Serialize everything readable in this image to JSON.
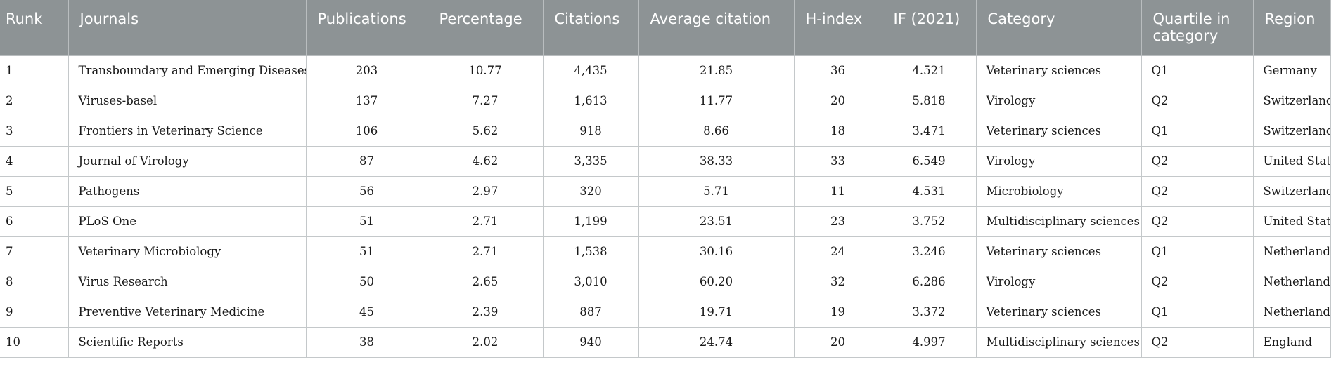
{
  "table": {
    "headers": {
      "rank": "Runk",
      "journal": "Journals",
      "publications": "Publications",
      "percentage": "Percentage",
      "citations": "Citations",
      "avg_citation": "Average citation",
      "h_index": "H-index",
      "impact_factor": "IF (2021)",
      "category": "Category",
      "quartile": "Quartile in category",
      "region": "Region"
    },
    "rows": [
      {
        "rank": "1",
        "journal": "Transboundary and Emerging Diseases",
        "publications": "203",
        "percentage": "10.77",
        "citations": "4,435",
        "avg_citation": "21.85",
        "h_index": "36",
        "impact_factor": "4.521",
        "category": "Veterinary sciences",
        "quartile": "Q1",
        "region": "Germany"
      },
      {
        "rank": "2",
        "journal": "Viruses-basel",
        "publications": "137",
        "percentage": "7.27",
        "citations": "1,613",
        "avg_citation": "11.77",
        "h_index": "20",
        "impact_factor": "5.818",
        "category": "Virology",
        "quartile": "Q2",
        "region": "Switzerland"
      },
      {
        "rank": "3",
        "journal": "Frontiers in Veterinary Science",
        "publications": "106",
        "percentage": "5.62",
        "citations": "918",
        "avg_citation": "8.66",
        "h_index": "18",
        "impact_factor": "3.471",
        "category": "Veterinary sciences",
        "quartile": "Q1",
        "region": "Switzerland"
      },
      {
        "rank": "4",
        "journal": "Journal of Virology",
        "publications": "87",
        "percentage": "4.62",
        "citations": "3,335",
        "avg_citation": "38.33",
        "h_index": "33",
        "impact_factor": "6.549",
        "category": "Virology",
        "quartile": "Q2",
        "region": "United States"
      },
      {
        "rank": "5",
        "journal": "Pathogens",
        "publications": "56",
        "percentage": "2.97",
        "citations": "320",
        "avg_citation": "5.71",
        "h_index": "11",
        "impact_factor": "4.531",
        "category": "Microbiology",
        "quartile": "Q2",
        "region": "Switzerland"
      },
      {
        "rank": "6",
        "journal": "PLoS One",
        "publications": "51",
        "percentage": "2.71",
        "citations": "1,199",
        "avg_citation": "23.51",
        "h_index": "23",
        "impact_factor": "3.752",
        "category": "Multidisciplinary sciences",
        "quartile": "Q2",
        "region": "United States"
      },
      {
        "rank": "7",
        "journal": "Veterinary Microbiology",
        "publications": "51",
        "percentage": "2.71",
        "citations": "1,538",
        "avg_citation": "30.16",
        "h_index": "24",
        "impact_factor": "3.246",
        "category": "Veterinary sciences",
        "quartile": "Q1",
        "region": "Netherlands"
      },
      {
        "rank": "8",
        "journal": "Virus Research",
        "publications": "50",
        "percentage": "2.65",
        "citations": "3,010",
        "avg_citation": "60.20",
        "h_index": "32",
        "impact_factor": "6.286",
        "category": "Virology",
        "quartile": "Q2",
        "region": "Netherlands"
      },
      {
        "rank": "9",
        "journal": "Preventive Veterinary Medicine",
        "publications": "45",
        "percentage": "2.39",
        "citations": "887",
        "avg_citation": "19.71",
        "h_index": "19",
        "impact_factor": "3.372",
        "category": "Veterinary sciences",
        "quartile": "Q1",
        "region": "Netherlands"
      },
      {
        "rank": "10",
        "journal": "Scientific Reports",
        "publications": "38",
        "percentage": "2.02",
        "citations": "940",
        "avg_citation": "24.74",
        "h_index": "20",
        "impact_factor": "4.997",
        "category": "Multidisciplinary sciences",
        "quartile": "Q2",
        "region": "England"
      }
    ]
  }
}
